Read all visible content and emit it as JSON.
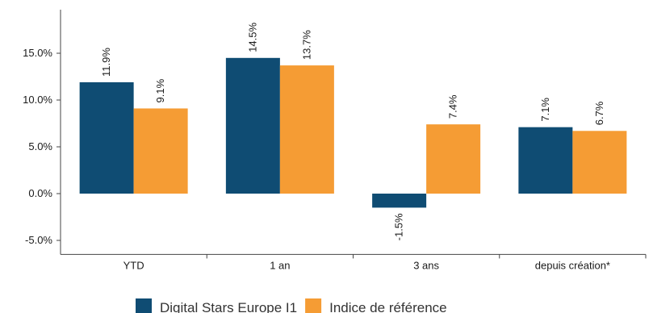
{
  "chart_data": {
    "type": "bar",
    "categories": [
      "YTD",
      "1 an",
      "3 ans",
      "depuis création*"
    ],
    "series": [
      {
        "name": "Digital Stars Europe  I1",
        "color": "#0f4c73",
        "values": [
          11.9,
          14.5,
          -1.5,
          7.1
        ],
        "labels": [
          "11.9%",
          "14.5%",
          "-1.5%",
          "7.1%"
        ]
      },
      {
        "name": "Indice de référence",
        "color": "#f59c34",
        "values": [
          9.1,
          13.7,
          7.4,
          6.7
        ],
        "labels": [
          "9.1%",
          "13.7%",
          "7.4%",
          "6.7%"
        ]
      }
    ],
    "ylim": [
      -6.5,
      20
    ],
    "yticks": [
      -5,
      0,
      5,
      10,
      15
    ],
    "ytick_labels": [
      "-5.0%",
      "0.0%",
      "5.0%",
      "10.0%",
      "15.0%"
    ],
    "grid": false,
    "legend_position": "bottom"
  }
}
